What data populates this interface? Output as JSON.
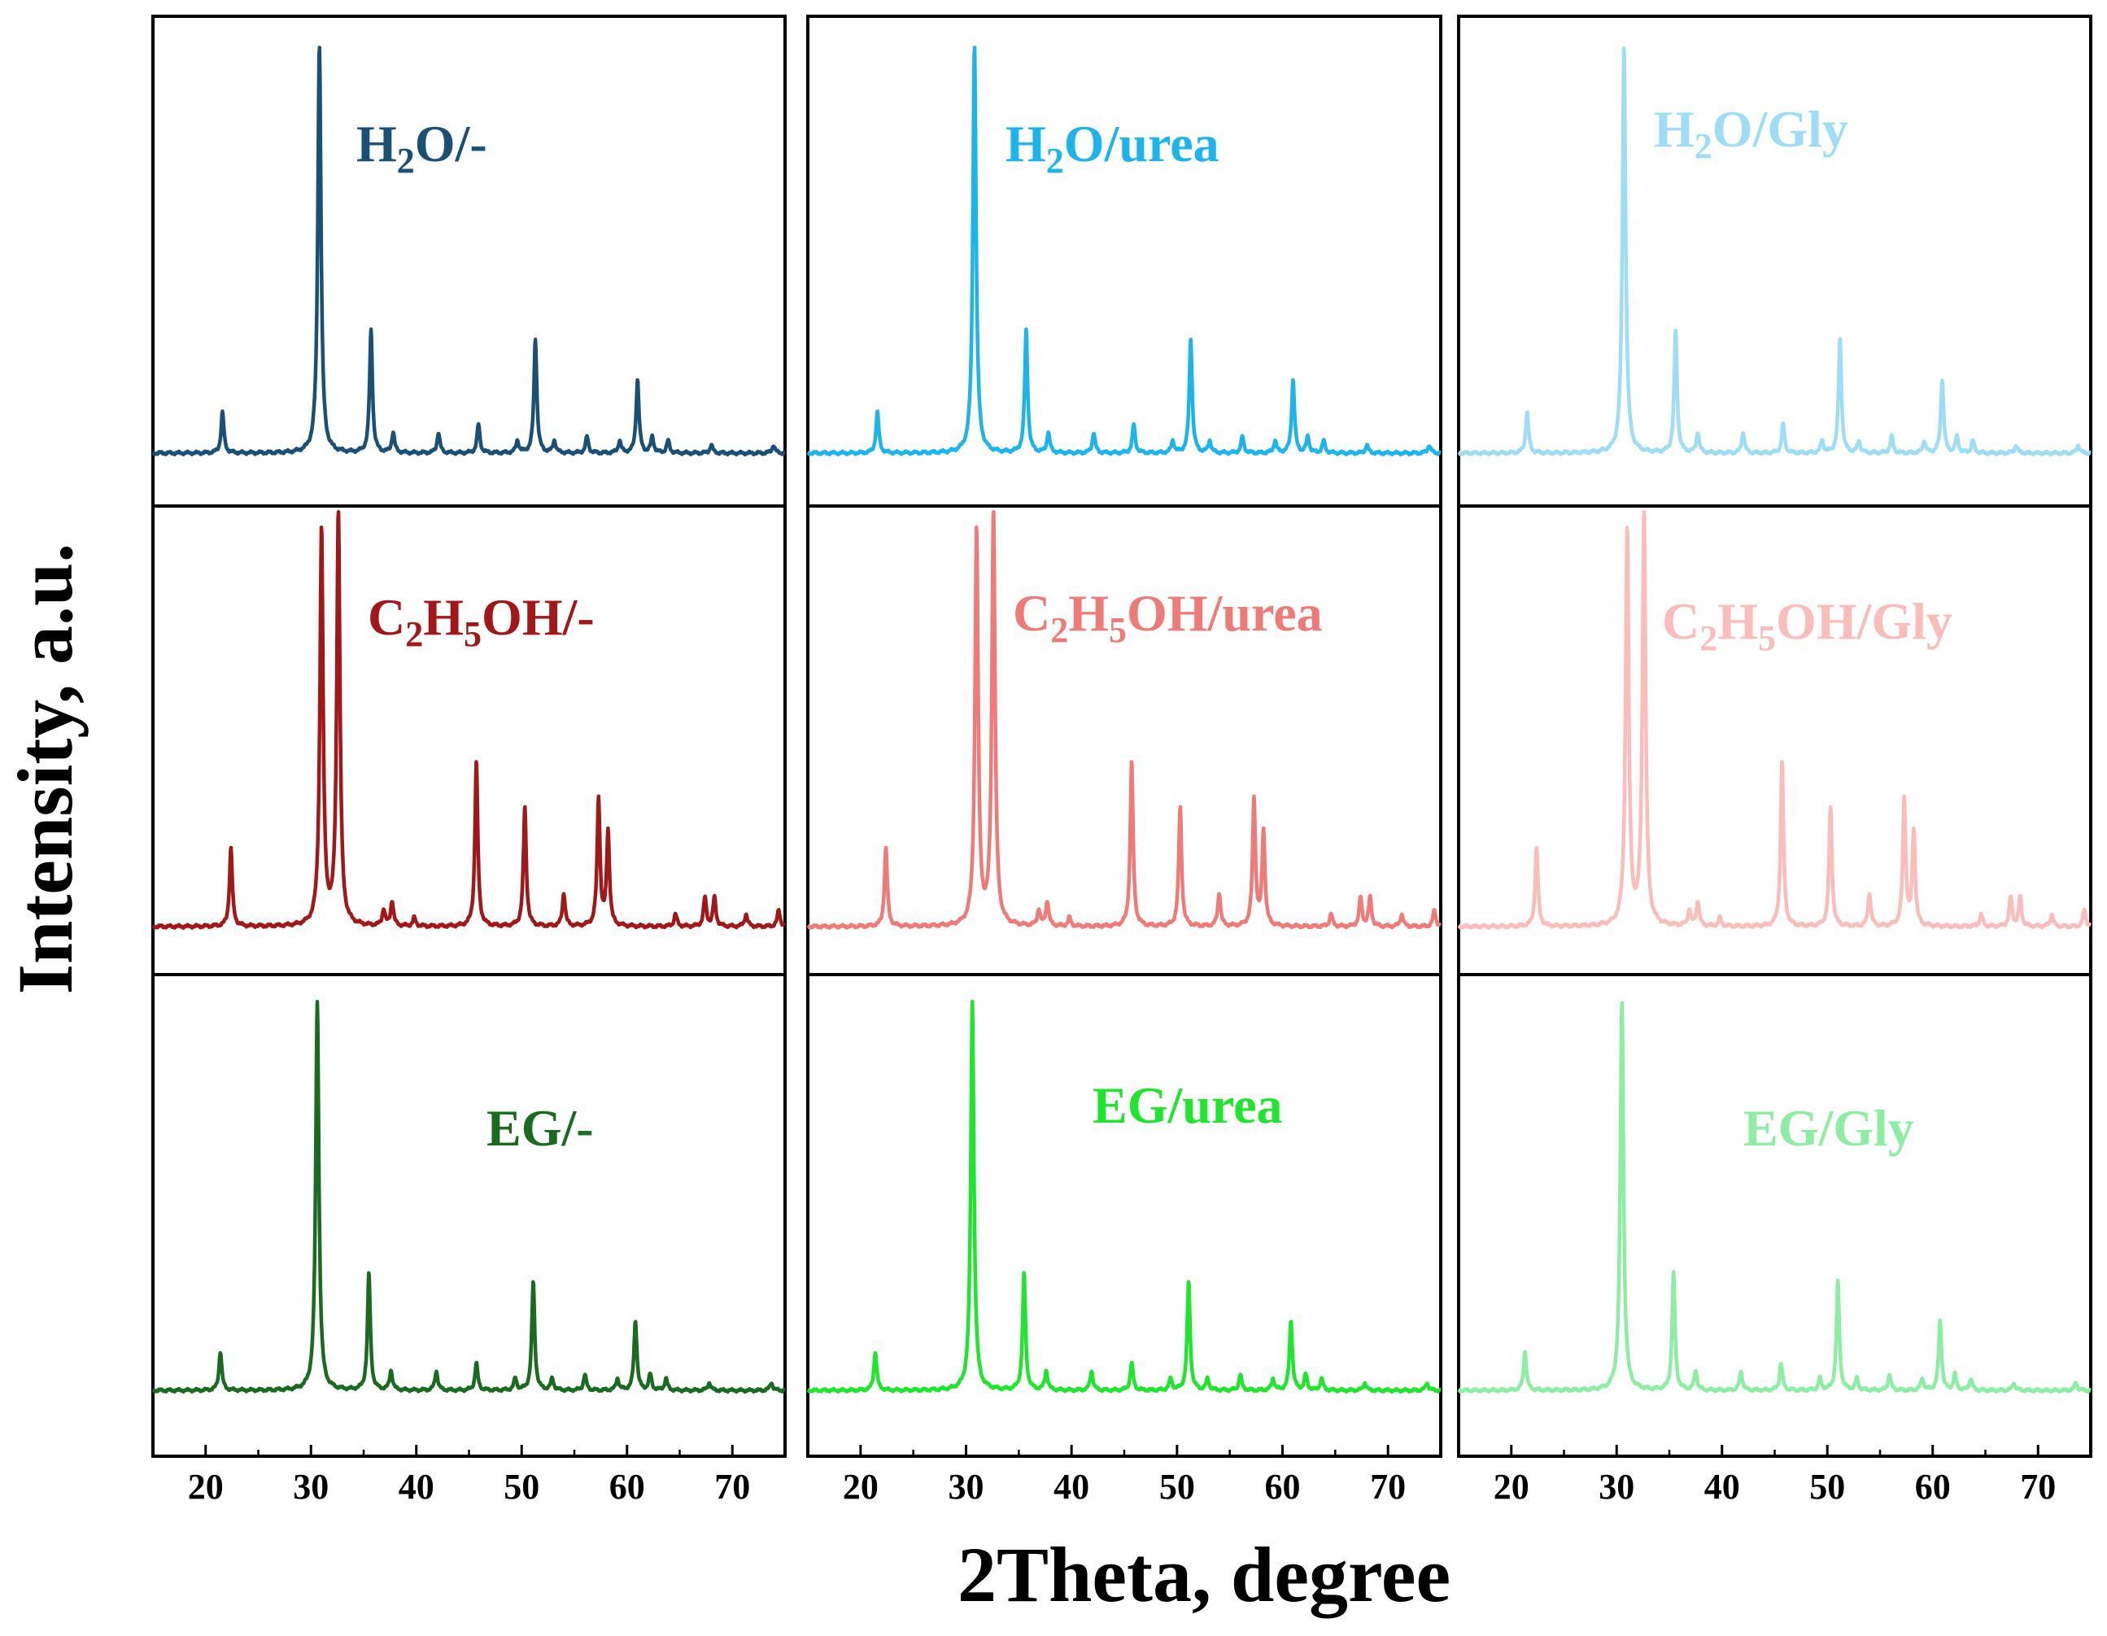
{
  "chart_data": {
    "type": "line",
    "title": "",
    "xlabel": "2Theta, degree",
    "ylabel": "Intensity, a.u.",
    "xlim": [
      15,
      75
    ],
    "ylim": [
      0,
      100
    ],
    "xticks": [
      20,
      30,
      40,
      50,
      60,
      70
    ],
    "grid": false,
    "legend": "in-panel labels",
    "peak_sets": {
      "typeA": [
        {
          "x": 21.6,
          "h": 10
        },
        {
          "x": 30.8,
          "h": 100
        },
        {
          "x": 35.7,
          "h": 30
        },
        {
          "x": 37.8,
          "h": 5
        },
        {
          "x": 42.1,
          "h": 5
        },
        {
          "x": 45.9,
          "h": 7
        },
        {
          "x": 49.6,
          "h": 3
        },
        {
          "x": 51.3,
          "h": 28
        },
        {
          "x": 53.1,
          "h": 3
        },
        {
          "x": 56.2,
          "h": 4
        },
        {
          "x": 59.3,
          "h": 3
        },
        {
          "x": 61.0,
          "h": 18
        },
        {
          "x": 62.4,
          "h": 4
        },
        {
          "x": 63.9,
          "h": 3
        },
        {
          "x": 68.0,
          "h": 2
        },
        {
          "x": 73.9,
          "h": 2
        }
      ],
      "typeB": [
        {
          "x": 22.4,
          "h": 19
        },
        {
          "x": 31.0,
          "h": 96
        },
        {
          "x": 32.6,
          "h": 100
        },
        {
          "x": 36.9,
          "h": 4
        },
        {
          "x": 37.7,
          "h": 6
        },
        {
          "x": 39.8,
          "h": 2
        },
        {
          "x": 45.7,
          "h": 40
        },
        {
          "x": 50.3,
          "h": 29
        },
        {
          "x": 54.0,
          "h": 8
        },
        {
          "x": 57.3,
          "h": 31
        },
        {
          "x": 58.2,
          "h": 23
        },
        {
          "x": 64.6,
          "h": 3
        },
        {
          "x": 67.4,
          "h": 7
        },
        {
          "x": 68.3,
          "h": 7
        },
        {
          "x": 71.3,
          "h": 3
        },
        {
          "x": 74.4,
          "h": 4
        }
      ]
    },
    "panels": [
      {
        "row": 0,
        "col": 0,
        "name": "H2O/-",
        "label_main": "H",
        "label_sub": "2",
        "label_rest": "O/-",
        "color": "#1A4F76",
        "peak_set": "typeA",
        "shift": 0.0
      },
      {
        "row": 0,
        "col": 1,
        "name": "H2O/urea",
        "label_main": "H",
        "label_sub": "2",
        "label_rest": "O/urea",
        "color": "#1CB4EC",
        "peak_set": "typeA",
        "shift": 0.0
      },
      {
        "row": 0,
        "col": 2,
        "name": "H2O/Gly",
        "label_main": "H",
        "label_sub": "2",
        "label_rest": "O/Gly",
        "color": "#9EDDF6",
        "peak_set": "typeA",
        "shift": -0.1
      },
      {
        "row": 1,
        "col": 0,
        "name": "C2H5OH/-",
        "label_main": "C",
        "label_sub": "2",
        "label_mid": "H",
        "label_sub2": "5",
        "label_rest": "OH/-",
        "color": "#A21718",
        "peak_set": "typeB",
        "shift": 0.0
      },
      {
        "row": 1,
        "col": 1,
        "name": "C2H5OH/urea",
        "label_main": "C",
        "label_sub": "2",
        "label_mid": "H",
        "label_sub2": "5",
        "label_rest": "OH/urea",
        "color": "#F07A78",
        "peak_set": "typeB",
        "shift": 0.0
      },
      {
        "row": 1,
        "col": 2,
        "name": "C2H5OH/Gly",
        "label_main": "C",
        "label_sub": "2",
        "label_mid": "H",
        "label_sub2": "5",
        "label_rest": "OH/Gly",
        "color": "#FBBCBA",
        "peak_set": "typeB",
        "shift": 0.0
      },
      {
        "row": 2,
        "col": 0,
        "name": "EG/-",
        "label_main": "EG/-",
        "color": "#196B1F",
        "peak_set": "typeA",
        "shift": -0.2
      },
      {
        "row": 2,
        "col": 1,
        "name": "EG/urea",
        "label_main": "EG/urea",
        "color": "#1EE62C",
        "peak_set": "typeA",
        "shift": -0.2
      },
      {
        "row": 2,
        "col": 2,
        "name": "EG/Gly",
        "label_main": "EG/Gly",
        "color": "#8CEEA2",
        "peak_set": "typeA",
        "shift": -0.3
      }
    ]
  }
}
